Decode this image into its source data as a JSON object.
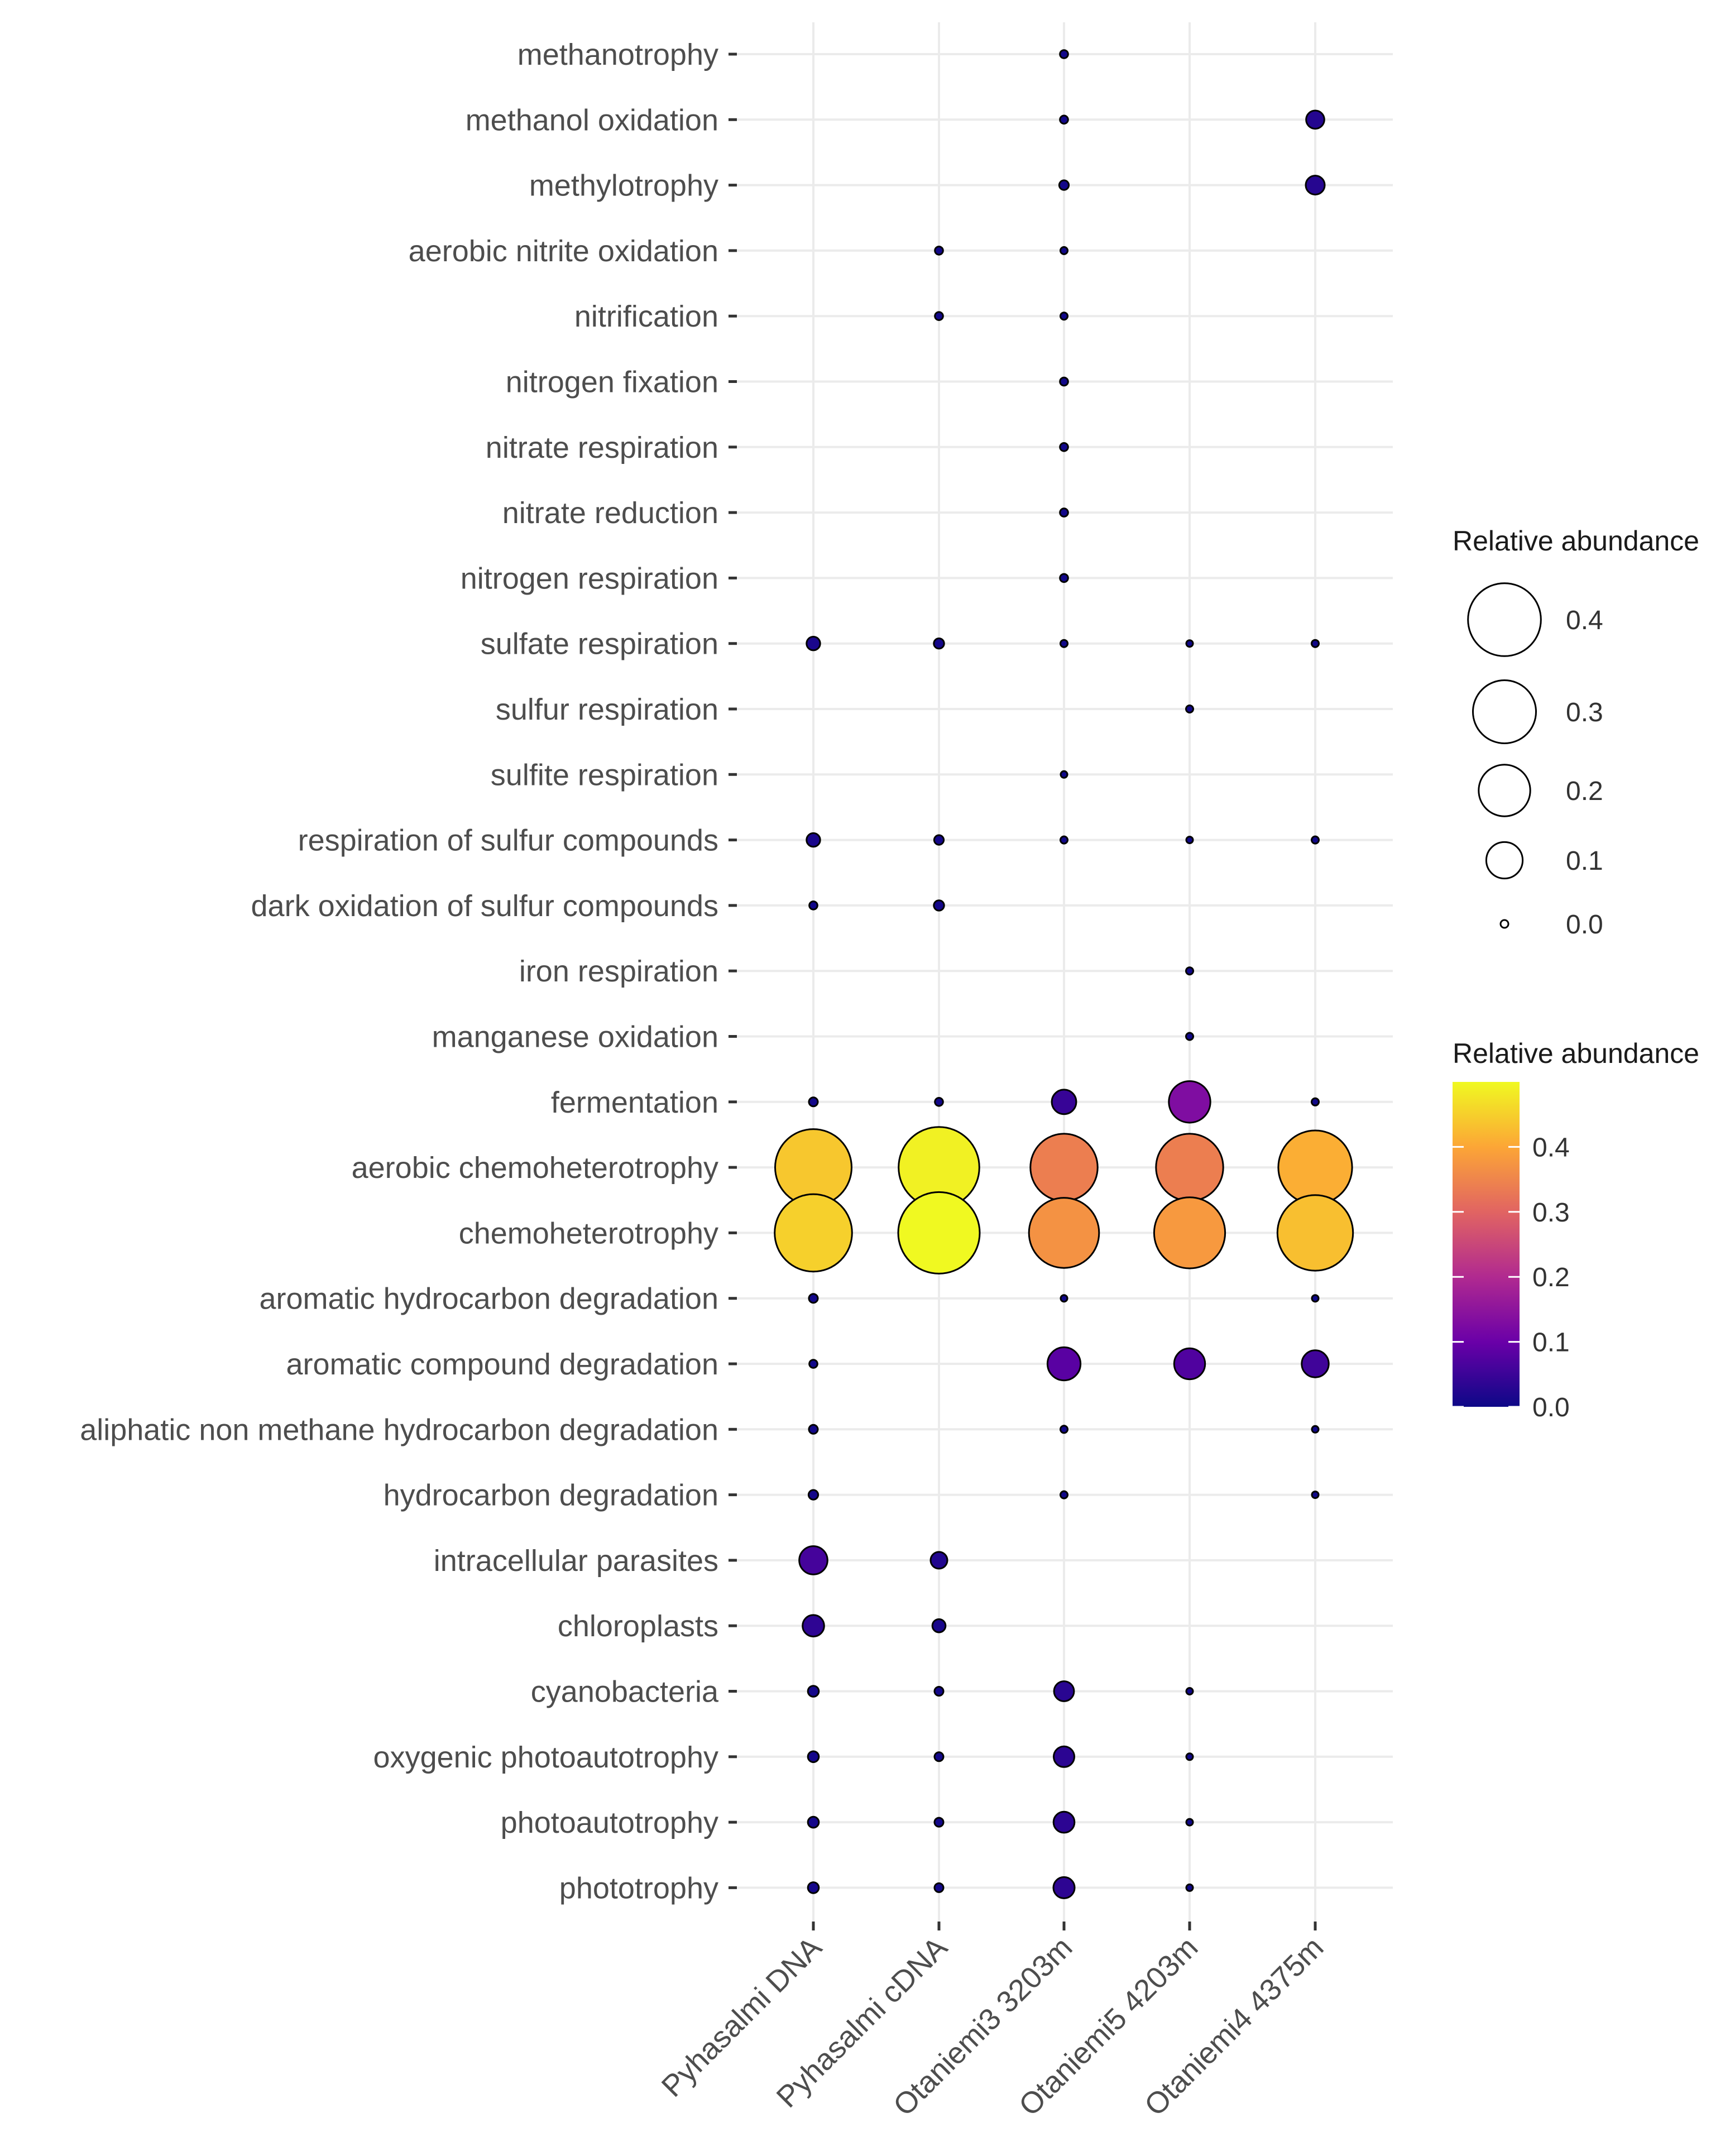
{
  "chart_data": {
    "type": "bubble",
    "title": "",
    "xlabel": "",
    "ylabel": "",
    "samples": [
      "Pyhasalmi DNA",
      "Pyhasalmi cDNA",
      "Otaniemi3 3203m",
      "Otaniemi5 4203m",
      "Otaniemi4 4375m"
    ],
    "functions": [
      "methanotrophy",
      "methanol oxidation",
      "methylotrophy",
      "aerobic nitrite oxidation",
      "nitrification",
      "nitrogen fixation",
      "nitrate respiration",
      "nitrate reduction",
      "nitrogen respiration",
      "sulfate respiration",
      "sulfur respiration",
      "sulfite respiration",
      "respiration of sulfur compounds",
      "dark oxidation of sulfur compounds",
      "iron respiration",
      "manganese oxidation",
      "fermentation",
      "aerobic chemoheterotrophy",
      "chemoheterotrophy",
      "aromatic hydrocarbon degradation",
      "aromatic compound degradation",
      "aliphatic non methane hydrocarbon degradation",
      "hydrocarbon degradation",
      "intracellular parasites",
      "chloroplasts",
      "cyanobacteria",
      "oxygenic photoautotrophy",
      "photoautotrophy",
      "phototrophy"
    ],
    "values": [
      [
        null,
        null,
        0.005,
        null,
        null
      ],
      [
        null,
        null,
        0.005,
        null,
        0.025
      ],
      [
        null,
        null,
        0.007,
        null,
        0.027
      ],
      [
        null,
        0.005,
        0.004,
        null,
        null
      ],
      [
        null,
        0.005,
        0.004,
        null,
        null
      ],
      [
        null,
        null,
        0.005,
        null,
        null
      ],
      [
        null,
        null,
        0.005,
        null,
        null
      ],
      [
        null,
        null,
        0.005,
        null,
        null
      ],
      [
        null,
        null,
        0.005,
        null,
        null
      ],
      [
        0.014,
        0.008,
        0.004,
        0.003,
        0.004
      ],
      [
        null,
        null,
        null,
        0.004,
        null
      ],
      [
        null,
        null,
        0.003,
        null,
        null
      ],
      [
        0.014,
        0.007,
        0.004,
        0.003,
        0.004
      ],
      [
        0.005,
        0.008,
        null,
        null,
        null
      ],
      [
        null,
        null,
        null,
        0.004,
        null
      ],
      [
        null,
        null,
        null,
        0.004,
        null
      ],
      [
        0.006,
        0.005,
        0.045,
        0.13,
        0.004
      ],
      [
        0.44,
        0.49,
        0.34,
        0.34,
        0.41
      ],
      [
        0.45,
        0.5,
        0.37,
        0.38,
        0.43
      ],
      [
        0.006,
        null,
        0.003,
        null,
        0.002
      ],
      [
        0.005,
        null,
        0.082,
        0.072,
        0.055
      ],
      [
        0.006,
        null,
        0.004,
        null,
        0.003
      ],
      [
        0.007,
        null,
        0.004,
        null,
        0.003
      ],
      [
        0.06,
        0.021,
        null,
        null,
        null
      ],
      [
        0.035,
        0.013,
        null,
        null,
        null
      ],
      [
        0.009,
        0.006,
        0.03,
        0.003,
        null
      ],
      [
        0.009,
        0.006,
        0.032,
        0.003,
        null
      ],
      [
        0.009,
        0.006,
        0.033,
        0.003,
        null
      ],
      [
        0.009,
        0.006,
        0.034,
        0.003,
        null
      ]
    ],
    "size_legend": {
      "title": "Relative abundance",
      "breaks": [
        0.4,
        0.3,
        0.2,
        0.1,
        0.0
      ],
      "labels": [
        "0.4",
        "0.3",
        "0.2",
        "0.1",
        "0.0"
      ]
    },
    "color_legend": {
      "title": "Relative abundance",
      "range": [
        0,
        0.5
      ],
      "ticks": [
        0.4,
        0.3,
        0.2,
        0.1,
        0.0
      ],
      "labels": [
        "0.4",
        "0.3",
        "0.2",
        "0.1",
        "0.0"
      ],
      "palette": [
        "#0d0887",
        "#6a00a8",
        "#b12a90",
        "#e16462",
        "#fca636",
        "#f0f921"
      ]
    },
    "grid": true,
    "legend_position": "right"
  }
}
